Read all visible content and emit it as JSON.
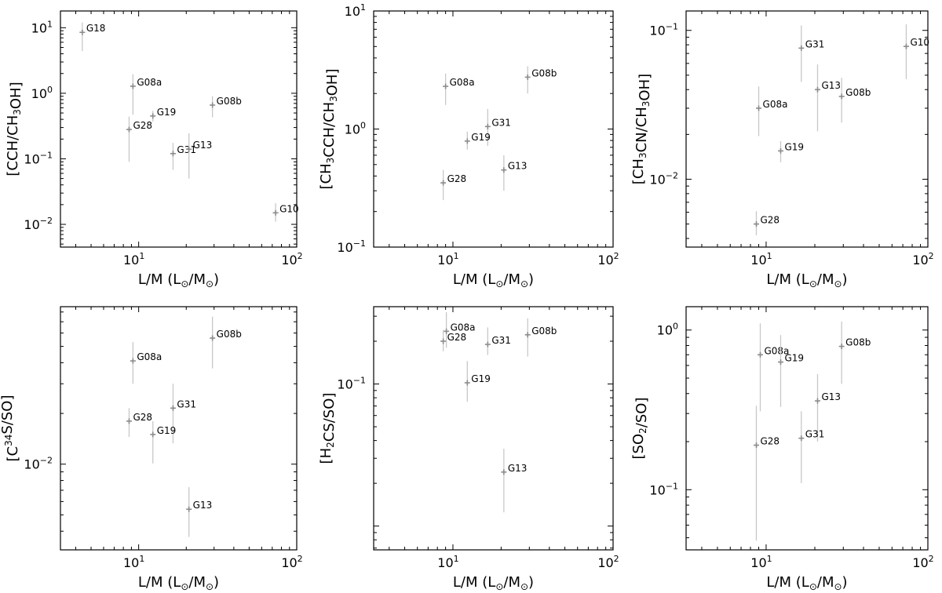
{
  "chart_data": [
    {
      "type": "scatter",
      "xlabel": "L/M (L_⊙/M_⊙)",
      "ylabel": "[CCH/CH3OH]",
      "xscale": "log",
      "yscale": "log",
      "xlim": [
        3.2,
        100
      ],
      "ylim": [
        0.0045,
        18
      ],
      "xticks": [
        10,
        100
      ],
      "yticks": [
        0.01,
        0.1,
        1,
        10
      ],
      "grid": false,
      "points": [
        {
          "name": "G18",
          "x": 4.4,
          "y": 8.5,
          "ylo": 4.4,
          "yhi": 12
        },
        {
          "name": "G08a",
          "x": 9.2,
          "y": 1.28,
          "ylo": 0.47,
          "yhi": 1.95
        },
        {
          "name": "G19",
          "x": 12.3,
          "y": 0.45,
          "ylo": 0.37,
          "yhi": 0.54
        },
        {
          "name": "G08b",
          "x": 29.3,
          "y": 0.66,
          "ylo": 0.43,
          "yhi": 0.9
        },
        {
          "name": "G28",
          "x": 8.7,
          "y": 0.28,
          "ylo": 0.09,
          "yhi": 0.44
        },
        {
          "name": "G31",
          "x": 16.5,
          "y": 0.12,
          "ylo": 0.068,
          "yhi": 0.175
        },
        {
          "name": "G13",
          "x": 20.8,
          "y": 0.14,
          "ylo": 0.05,
          "yhi": 0.245
        },
        {
          "name": "G10",
          "x": 73.5,
          "y": 0.015,
          "ylo": 0.011,
          "yhi": 0.021
        }
      ]
    },
    {
      "type": "scatter",
      "xlabel": "L/M (L_⊙/M_⊙)",
      "ylabel": "[CH3CCH/CH3OH]",
      "xscale": "log",
      "yscale": "log",
      "xlim": [
        3.2,
        100
      ],
      "ylim": [
        0.1,
        10
      ],
      "xticks": [
        10,
        100
      ],
      "yticks": [
        0.1,
        1,
        10
      ],
      "grid": false,
      "points": [
        {
          "name": "G08a",
          "x": 9.0,
          "y": 2.3,
          "ylo": 1.6,
          "yhi": 2.95
        },
        {
          "name": "G08b",
          "x": 29.3,
          "y": 2.75,
          "ylo": 2.0,
          "yhi": 3.4
        },
        {
          "name": "G31",
          "x": 16.5,
          "y": 1.05,
          "ylo": 0.72,
          "yhi": 1.48
        },
        {
          "name": "G19",
          "x": 12.3,
          "y": 0.79,
          "ylo": 0.67,
          "yhi": 0.95
        },
        {
          "name": "G13",
          "x": 20.8,
          "y": 0.45,
          "ylo": 0.3,
          "yhi": 0.6
        },
        {
          "name": "G28",
          "x": 8.7,
          "y": 0.35,
          "ylo": 0.25,
          "yhi": 0.45
        }
      ]
    },
    {
      "type": "scatter",
      "xlabel": "L/M (L_⊙/M_⊙)",
      "ylabel": "[CH3CN/CH3OH]",
      "xscale": "log",
      "yscale": "log",
      "xlim": [
        3.2,
        100
      ],
      "ylim": [
        0.0035,
        0.135
      ],
      "xticks": [
        10,
        100
      ],
      "yticks": [
        0.01,
        0.1
      ],
      "grid": false,
      "points": [
        {
          "name": "G31",
          "x": 16.5,
          "y": 0.076,
          "ylo": 0.045,
          "yhi": 0.108
        },
        {
          "name": "G10",
          "x": 73.5,
          "y": 0.078,
          "ylo": 0.047,
          "yhi": 0.11
        },
        {
          "name": "G13",
          "x": 20.8,
          "y": 0.04,
          "ylo": 0.021,
          "yhi": 0.059
        },
        {
          "name": "G08b",
          "x": 29.3,
          "y": 0.036,
          "ylo": 0.024,
          "yhi": 0.048
        },
        {
          "name": "G08a",
          "x": 9.0,
          "y": 0.03,
          "ylo": 0.0195,
          "yhi": 0.042
        },
        {
          "name": "G19",
          "x": 12.3,
          "y": 0.0155,
          "ylo": 0.013,
          "yhi": 0.018
        },
        {
          "name": "G28",
          "x": 8.7,
          "y": 0.005,
          "ylo": 0.0042,
          "yhi": 0.0061
        }
      ]
    },
    {
      "type": "scatter",
      "xlabel": "L/M (L_⊙/M_⊙)",
      "ylabel": "[C34S/SO]",
      "xscale": "log",
      "yscale": "log",
      "xlim": [
        3.2,
        100
      ],
      "ylim": [
        0.0031,
        0.086
      ],
      "xticks": [
        10,
        100
      ],
      "yticks": [
        0.01
      ],
      "grid": false,
      "points": [
        {
          "name": "G08b",
          "x": 29.3,
          "y": 0.056,
          "ylo": 0.037,
          "yhi": 0.075
        },
        {
          "name": "G08a",
          "x": 9.2,
          "y": 0.041,
          "ylo": 0.03,
          "yhi": 0.053
        },
        {
          "name": "G31",
          "x": 16.5,
          "y": 0.0215,
          "ylo": 0.0133,
          "yhi": 0.03
        },
        {
          "name": "G28",
          "x": 8.7,
          "y": 0.018,
          "ylo": 0.0145,
          "yhi": 0.0215
        },
        {
          "name": "G19",
          "x": 12.3,
          "y": 0.015,
          "ylo": 0.0101,
          "yhi": 0.018
        },
        {
          "name": "G13",
          "x": 20.8,
          "y": 0.0054,
          "ylo": 0.0037,
          "yhi": 0.0073
        }
      ]
    },
    {
      "type": "scatter",
      "xlabel": "L/M (L_⊙/M_⊙)",
      "ylabel": "[H2CS/SO]",
      "xscale": "log",
      "yscale": "log",
      "xlim": [
        3.2,
        100
      ],
      "ylim": [
        0.0068,
        0.35
      ],
      "xticks": [
        10,
        100
      ],
      "yticks": [
        0.1
      ],
      "grid": false,
      "points": [
        {
          "name": "G08a",
          "x": 9.1,
          "y": 0.235,
          "ylo": 0.18,
          "yhi": 0.32
        },
        {
          "name": "G08b",
          "x": 29.3,
          "y": 0.222,
          "ylo": 0.156,
          "yhi": 0.29
        },
        {
          "name": "G28",
          "x": 8.7,
          "y": 0.2,
          "ylo": 0.17,
          "yhi": 0.24
        },
        {
          "name": "G31",
          "x": 16.5,
          "y": 0.19,
          "ylo": 0.16,
          "yhi": 0.25
        },
        {
          "name": "G19",
          "x": 12.3,
          "y": 0.102,
          "ylo": 0.075,
          "yhi": 0.145
        },
        {
          "name": "G13",
          "x": 20.8,
          "y": 0.024,
          "ylo": 0.0125,
          "yhi": 0.035
        }
      ]
    },
    {
      "type": "scatter",
      "xlabel": "L/M (L_⊙/M_⊙)",
      "ylabel": "[SO2/SO]",
      "xscale": "log",
      "yscale": "log",
      "xlim": [
        3.2,
        100
      ],
      "ylim": [
        0.042,
        1.4
      ],
      "xticks": [
        10,
        100
      ],
      "yticks": [
        0.1,
        1
      ],
      "grid": false,
      "points": [
        {
          "name": "G08b",
          "x": 29.3,
          "y": 0.79,
          "ylo": 0.46,
          "yhi": 1.13
        },
        {
          "name": "G08a",
          "x": 9.2,
          "y": 0.7,
          "ylo": 0.31,
          "yhi": 1.1
        },
        {
          "name": "G19",
          "x": 12.3,
          "y": 0.63,
          "ylo": 0.33,
          "yhi": 0.93
        },
        {
          "name": "G13",
          "x": 20.8,
          "y": 0.36,
          "ylo": 0.2,
          "yhi": 0.53
        },
        {
          "name": "G31",
          "x": 16.5,
          "y": 0.21,
          "ylo": 0.11,
          "yhi": 0.31
        },
        {
          "name": "G28",
          "x": 8.7,
          "y": 0.19,
          "ylo": 0.048,
          "yhi": 0.335
        }
      ]
    }
  ]
}
